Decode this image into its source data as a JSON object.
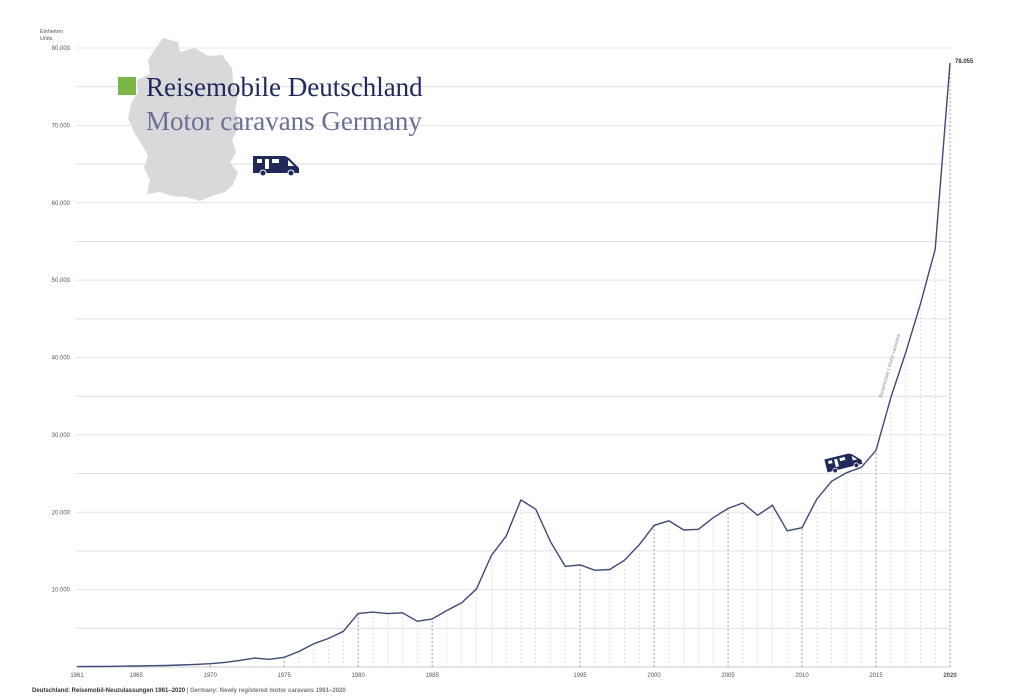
{
  "chart_data": {
    "type": "line",
    "title": "Reisemobile Deutschland",
    "subtitle": "Motor caravans Germany",
    "unit_label_de": "Einheiten",
    "unit_label_en": "Units",
    "footer_de": "Deutschland: Reisemobil-Neuzulassungen 1961–2020",
    "footer_sep": " | ",
    "footer_en": "Germany: Newly registered motor caravans 1961–2020",
    "rotated_label": "Reisemobile | Motor caravans",
    "end_value_label": "78.055",
    "ylim": [
      0,
      80000
    ],
    "xlim": [
      1961,
      2020
    ],
    "y_ticks": [
      {
        "value": 10000,
        "label": "10.000"
      },
      {
        "value": 20000,
        "label": "20.000"
      },
      {
        "value": 30000,
        "label": "30.000"
      },
      {
        "value": 40000,
        "label": "40.000"
      },
      {
        "value": 50000,
        "label": "50.000"
      },
      {
        "value": 60000,
        "label": "60.000"
      },
      {
        "value": 70000,
        "label": "70.000"
      },
      {
        "value": 80000,
        "label": "80.000"
      }
    ],
    "x_ticks": [
      {
        "value": 1961,
        "label": "1961"
      },
      {
        "value": 1965,
        "label": "1965"
      },
      {
        "value": 1970,
        "label": "1970"
      },
      {
        "value": 1975,
        "label": "1975"
      },
      {
        "value": 1980,
        "label": "1980"
      },
      {
        "value": 1985,
        "label": "1985"
      },
      {
        "value": 1995,
        "label": "1995"
      },
      {
        "value": 2000,
        "label": "2000"
      },
      {
        "value": 2005,
        "label": "2005"
      },
      {
        "value": 2010,
        "label": "2010"
      },
      {
        "value": 2015,
        "label": "2015"
      },
      {
        "value": 2020,
        "label": "2020"
      }
    ],
    "grid": true,
    "line_color": "#3d4a75",
    "title_color": "#1f2a5a",
    "subtitle_color": "#6a6f95",
    "legend_color": "#7ab648",
    "map_color": "#d9d9db",
    "icon_names": [
      "germany-map-icon",
      "motorhome-icon"
    ],
    "series": [
      {
        "x": [
          1961,
          1962,
          1963,
          1964,
          1965,
          1966,
          1967,
          1968,
          1969,
          1970,
          1971,
          1972,
          1973,
          1974,
          1975,
          1976,
          1977,
          1978,
          1979,
          1980,
          1981,
          1982,
          1983,
          1984,
          1985,
          1986,
          1987,
          1988,
          1989,
          1990,
          1991,
          1992,
          1993,
          1994,
          1995,
          1996,
          1997,
          1998,
          1999,
          2000,
          2001,
          2002,
          2003,
          2004,
          2005,
          2006,
          2007,
          2008,
          2009,
          2010,
          2011,
          2012,
          2013,
          2014,
          2015,
          2016,
          2017,
          2018,
          2019,
          2020
        ],
        "values": [
          50,
          60,
          80,
          100,
          130,
          170,
          200,
          260,
          330,
          430,
          600,
          850,
          1150,
          1000,
          1250,
          2000,
          3000,
          3700,
          4600,
          6900,
          7100,
          6900,
          7000,
          5900,
          6200,
          7300,
          8300,
          10100,
          14400,
          16900,
          21600,
          20400,
          16200,
          13000,
          13200,
          12500,
          12600,
          13800,
          15800,
          18300,
          18900,
          17700,
          17800,
          19300,
          20500,
          21200,
          19600,
          20900,
          17600,
          18000,
          21700,
          24000,
          25100,
          25800,
          28000,
          34800,
          40600,
          46900,
          54000,
          78055
        ]
      }
    ]
  }
}
